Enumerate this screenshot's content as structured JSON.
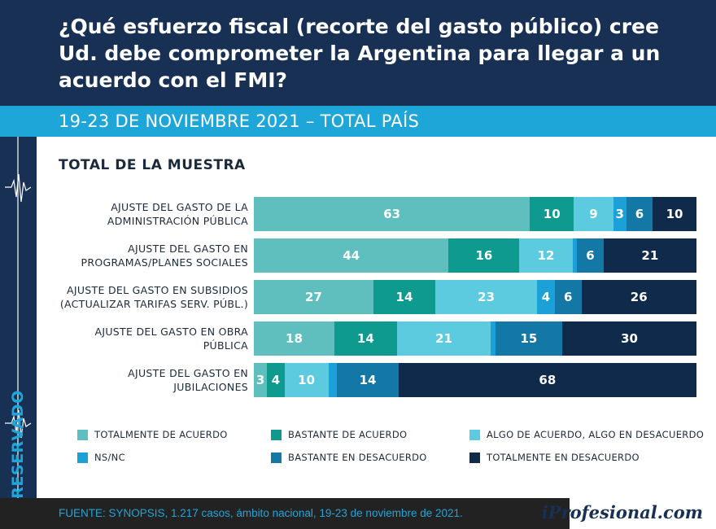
{
  "header": {
    "title": "¿Qué esfuerzo fiscal (recorte del gasto público) cree Ud. debe comprometer la Argentina para llegar a un acuerdo con el FMI?",
    "subtitle": "19-23 DE NOVIEMBRE 2021 – TOTAL PAÍS"
  },
  "side": {
    "label": "RESERVADO"
  },
  "footer": {
    "source": "FUENTE: SYNOPSIS, 1.217 casos, ámbito nacional, 19-23 de noviembre de 2021.",
    "brand": "iProfesional.com"
  },
  "chart_data": {
    "type": "bar",
    "orientation": "horizontal",
    "stacked": true,
    "title": "TOTAL DE LA MUESTRA",
    "categories": [
      "AJUSTE DEL GASTO DE LA ADMINISTRACIÓN PÚBLICA",
      "AJUSTE DEL GASTO EN PROGRAMAS/PLANES SOCIALES",
      "AJUSTE DEL GASTO EN SUBSIDIOS (ACTUALIZAR TARIFAS SERV. PÚBL.)",
      "AJUSTE DEL GASTO EN OBRA PÚBLICA",
      "AJUSTE DEL GASTO EN JUBILACIONES"
    ],
    "category_lines": [
      [
        "AJUSTE DEL GASTO DE LA",
        "ADMINISTRACIÓN PÚBLICA"
      ],
      [
        "AJUSTE DEL GASTO EN",
        "PROGRAMAS/PLANES SOCIALES"
      ],
      [
        "AJUSTE DEL GASTO EN SUBSIDIOS",
        "(ACTUALIZAR TARIFAS SERV. PÚBL.)"
      ],
      [
        "AJUSTE DEL GASTO EN OBRA",
        "PÚBLICA"
      ],
      [
        "AJUSTE DEL GASTO EN",
        "JUBILACIONES"
      ]
    ],
    "series": [
      {
        "name": "TOTALMENTE DE ACUERDO",
        "color": "#5fbfbf",
        "values": [
          63,
          44,
          27,
          18,
          3
        ]
      },
      {
        "name": "BASTANTE DE ACUERDO",
        "color": "#0e9a8e",
        "values": [
          10,
          16,
          14,
          14,
          4
        ]
      },
      {
        "name": "ALGO DE ACUERDO, ALGO EN DESACUERDO",
        "color": "#5ccbe0",
        "values": [
          9,
          12,
          23,
          21,
          10
        ]
      },
      {
        "name": "NS/NC",
        "color": "#1ba0d8",
        "values": [
          3,
          1,
          4,
          1,
          2
        ]
      },
      {
        "name": "BASTANTE EN DESACUERDO",
        "color": "#1478a6",
        "values": [
          6,
          6,
          6,
          15,
          14
        ]
      },
      {
        "name": "TOTALMENTE EN DESACUERDO",
        "color": "#0f2a4a",
        "values": [
          10,
          21,
          26,
          30,
          68
        ]
      }
    ],
    "label_threshold": 3,
    "xlim": [
      0,
      100
    ],
    "unit": "%",
    "legend_position": "bottom"
  }
}
